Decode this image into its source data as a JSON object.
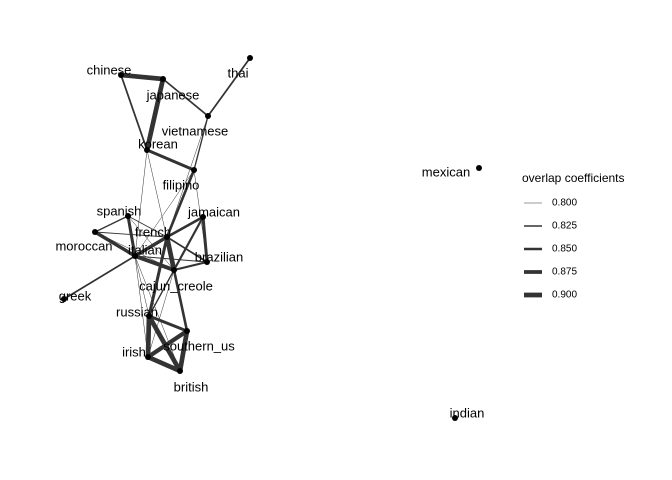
{
  "graph": {
    "nodes": [
      {
        "id": "chinese",
        "label": "chinese"
      },
      {
        "id": "japanese",
        "label": "japanese"
      },
      {
        "id": "thai",
        "label": "thai"
      },
      {
        "id": "vietnamese",
        "label": "vietnamese"
      },
      {
        "id": "korean",
        "label": "korean"
      },
      {
        "id": "filipino",
        "label": "filipino"
      },
      {
        "id": "spanish",
        "label": "spanish"
      },
      {
        "id": "jamaican",
        "label": "jamaican"
      },
      {
        "id": "french",
        "label": "french"
      },
      {
        "id": "moroccan",
        "label": "moroccan"
      },
      {
        "id": "italian",
        "label": "italian"
      },
      {
        "id": "brazilian",
        "label": "brazilian"
      },
      {
        "id": "cajun_creole",
        "label": "cajun_creole"
      },
      {
        "id": "greek",
        "label": "greek"
      },
      {
        "id": "russian",
        "label": "russian"
      },
      {
        "id": "southern_us",
        "label": "southern_us"
      },
      {
        "id": "irish",
        "label": "irish"
      },
      {
        "id": "british",
        "label": "british"
      },
      {
        "id": "mexican",
        "label": "mexican"
      },
      {
        "id": "indian",
        "label": "indian"
      }
    ],
    "edges": [
      {
        "source": "chinese",
        "target": "japanese",
        "weight": 0.9
      },
      {
        "source": "chinese",
        "target": "korean",
        "weight": 0.83
      },
      {
        "source": "japanese",
        "target": "korean",
        "weight": 0.9
      },
      {
        "source": "japanese",
        "target": "vietnamese",
        "weight": 0.83
      },
      {
        "source": "thai",
        "target": "vietnamese",
        "weight": 0.83
      },
      {
        "source": "vietnamese",
        "target": "filipino",
        "weight": 0.82
      },
      {
        "source": "vietnamese",
        "target": "french",
        "weight": 0.8
      },
      {
        "source": "korean",
        "target": "filipino",
        "weight": 0.86
      },
      {
        "source": "korean",
        "target": "italian",
        "weight": 0.8
      },
      {
        "source": "korean",
        "target": "cajun_creole",
        "weight": 0.8
      },
      {
        "source": "filipino",
        "target": "french",
        "weight": 0.85
      },
      {
        "source": "filipino",
        "target": "brazilian",
        "weight": 0.8
      },
      {
        "source": "filipino",
        "target": "italian",
        "weight": 0.8
      },
      {
        "source": "spanish",
        "target": "moroccan",
        "weight": 0.82
      },
      {
        "source": "spanish",
        "target": "italian",
        "weight": 0.86
      },
      {
        "source": "spanish",
        "target": "cajun_creole",
        "weight": 0.8
      },
      {
        "source": "spanish",
        "target": "french",
        "weight": 0.81
      },
      {
        "source": "moroccan",
        "target": "italian",
        "weight": 0.87
      },
      {
        "source": "moroccan",
        "target": "french",
        "weight": 0.81
      },
      {
        "source": "moroccan",
        "target": "cajun_creole",
        "weight": 0.8
      },
      {
        "source": "jamaican",
        "target": "french",
        "weight": 0.85
      },
      {
        "source": "jamaican",
        "target": "brazilian",
        "weight": 0.86
      },
      {
        "source": "jamaican",
        "target": "cajun_creole",
        "weight": 0.84
      },
      {
        "source": "jamaican",
        "target": "italian",
        "weight": 0.81
      },
      {
        "source": "french",
        "target": "italian",
        "weight": 0.87
      },
      {
        "source": "french",
        "target": "brazilian",
        "weight": 0.83
      },
      {
        "source": "french",
        "target": "cajun_creole",
        "weight": 0.9
      },
      {
        "source": "french",
        "target": "russian",
        "weight": 0.86
      },
      {
        "source": "french",
        "target": "southern_us",
        "weight": 0.83
      },
      {
        "source": "italian",
        "target": "cajun_creole",
        "weight": 0.88
      },
      {
        "source": "italian",
        "target": "brazilian",
        "weight": 0.81
      },
      {
        "source": "italian",
        "target": "russian",
        "weight": 0.8
      },
      {
        "source": "italian",
        "target": "british",
        "weight": 0.8
      },
      {
        "source": "italian",
        "target": "irish",
        "weight": 0.8
      },
      {
        "source": "brazilian",
        "target": "cajun_creole",
        "weight": 0.84
      },
      {
        "source": "cajun_creole",
        "target": "southern_us",
        "weight": 0.85
      },
      {
        "source": "cajun_creole",
        "target": "russian",
        "weight": 0.82
      },
      {
        "source": "cajun_creole",
        "target": "irish",
        "weight": 0.8
      },
      {
        "source": "greek",
        "target": "italian",
        "weight": 0.83
      },
      {
        "source": "russian",
        "target": "southern_us",
        "weight": 0.86
      },
      {
        "source": "russian",
        "target": "irish",
        "weight": 0.9
      },
      {
        "source": "russian",
        "target": "british",
        "weight": 0.9
      },
      {
        "source": "southern_us",
        "target": "irish",
        "weight": 0.89
      },
      {
        "source": "southern_us",
        "target": "british",
        "weight": 0.9
      },
      {
        "source": "irish",
        "target": "british",
        "weight": 0.9
      }
    ]
  },
  "legend": {
    "title": "overlap coefficients",
    "items": [
      {
        "label": "0.800",
        "weight": 0.8
      },
      {
        "label": "0.825",
        "weight": 0.825
      },
      {
        "label": "0.850",
        "weight": 0.85
      },
      {
        "label": "0.875",
        "weight": 0.875
      },
      {
        "label": "0.900",
        "weight": 0.9
      }
    ]
  },
  "colors": {
    "edge": "#333333",
    "node": "#000000",
    "background": "#ffffff"
  }
}
